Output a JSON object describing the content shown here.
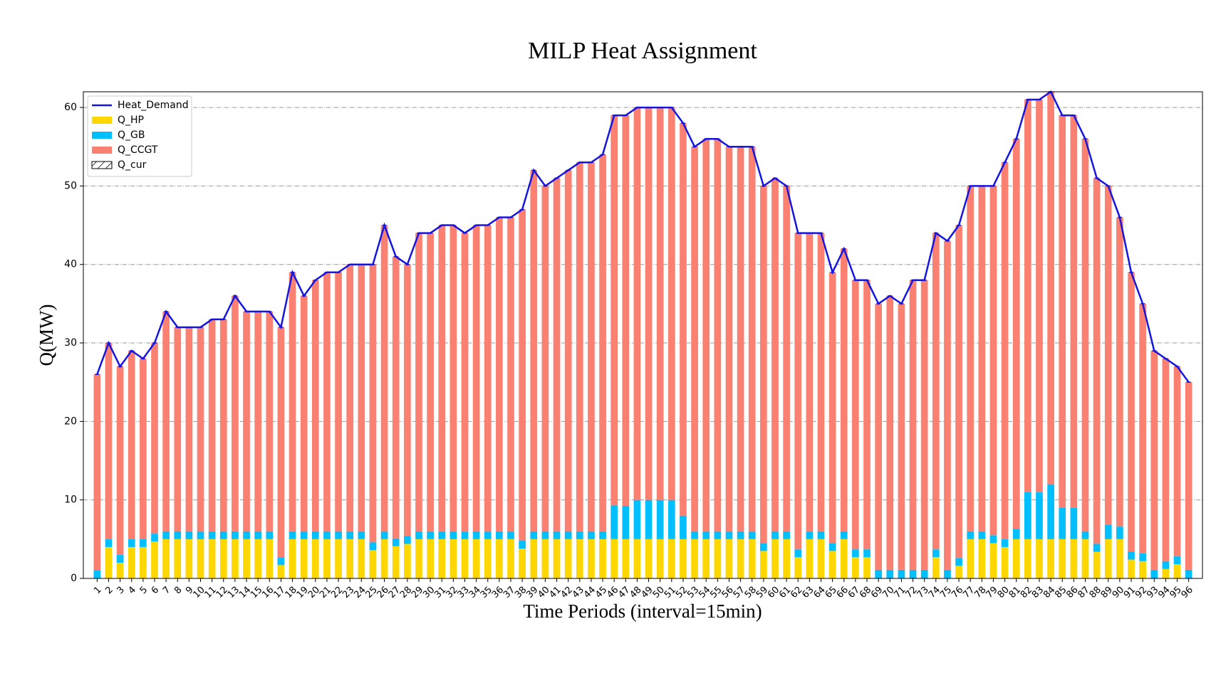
{
  "chart_data": {
    "type": "bar",
    "title": "MILP Heat Assignment",
    "xlabel": "Time Periods (interval=15min)",
    "ylabel": "Q(MW)",
    "categories": [
      "1",
      "2",
      "3",
      "4",
      "5",
      "6",
      "7",
      "8",
      "9",
      "10",
      "11",
      "12",
      "13",
      "14",
      "15",
      "16",
      "17",
      "18",
      "19",
      "20",
      "21",
      "22",
      "23",
      "24",
      "25",
      "26",
      "27",
      "28",
      "29",
      "30",
      "31",
      "32",
      "33",
      "34",
      "35",
      "36",
      "37",
      "38",
      "39",
      "40",
      "41",
      "42",
      "43",
      "44",
      "45",
      "46",
      "47",
      "48",
      "49",
      "50",
      "51",
      "52",
      "53",
      "54",
      "55",
      "56",
      "57",
      "58",
      "59",
      "60",
      "61",
      "62",
      "63",
      "64",
      "65",
      "66",
      "67",
      "68",
      "69",
      "70",
      "71",
      "72",
      "73",
      "74",
      "75",
      "76",
      "77",
      "78",
      "79",
      "80",
      "81",
      "82",
      "83",
      "84",
      "85",
      "86",
      "87",
      "88",
      "89",
      "90",
      "91",
      "92",
      "93",
      "94",
      "95",
      "96"
    ],
    "series": [
      {
        "name": "Heat_Demand",
        "type": "line",
        "color": "#1515e0",
        "values": [
          26,
          30,
          27,
          29,
          28,
          30,
          34,
          32,
          32,
          32,
          33,
          33,
          36,
          34,
          34,
          34,
          32,
          39,
          36,
          38,
          39,
          39,
          40,
          40,
          40,
          45,
          41,
          40,
          44,
          44,
          45,
          45,
          44,
          45,
          45,
          46,
          46,
          47,
          52,
          50,
          51,
          52,
          53,
          53,
          54,
          59,
          59,
          60,
          60,
          60,
          60,
          58,
          55,
          56,
          56,
          55,
          55,
          55,
          50,
          51,
          50,
          44,
          44,
          44,
          39,
          42,
          38,
          38,
          35,
          36,
          35,
          38,
          38,
          44,
          43,
          45,
          50,
          50,
          50,
          53,
          56,
          61,
          61,
          62,
          59,
          59,
          56,
          51,
          50,
          46,
          39,
          35,
          29,
          28,
          27,
          25
        ]
      },
      {
        "name": "Q_HP",
        "type": "bar",
        "color": "#ffd700",
        "values": [
          0,
          4,
          2,
          4,
          4,
          4.7,
          5,
          5,
          5,
          5,
          5,
          5,
          5,
          5,
          5,
          5,
          1.7,
          5,
          5,
          5,
          5,
          5,
          5,
          5,
          3.6,
          5,
          4.1,
          4.4,
          5,
          5,
          5,
          5,
          5,
          5,
          5,
          5,
          5,
          3.8,
          5,
          5,
          5,
          5,
          5,
          5,
          5,
          5,
          5,
          5,
          5,
          5,
          5,
          5,
          5,
          5,
          5,
          5,
          5,
          5,
          3.5,
          5,
          5,
          2.7,
          5,
          5,
          3.5,
          5,
          2.7,
          2.7,
          0,
          0,
          0,
          0,
          0,
          2.7,
          0,
          1.6,
          5,
          5,
          4.5,
          4,
          5,
          5,
          5,
          5,
          5,
          5,
          5,
          3.4,
          5,
          5,
          2.4,
          2.2,
          0,
          1.2,
          1.8,
          0
        ]
      },
      {
        "name": "Q_GB",
        "type": "bar",
        "color": "#00bfff",
        "values": [
          1,
          1,
          1,
          1,
          1,
          1,
          1,
          1,
          1,
          1,
          1,
          1,
          1,
          1,
          1,
          1,
          1,
          1,
          1,
          1,
          1,
          1,
          1,
          1,
          1,
          1,
          1,
          1,
          1,
          1,
          1,
          1,
          1,
          1,
          1,
          1,
          1,
          1,
          1,
          1,
          1,
          1,
          1,
          1,
          1,
          4.3,
          4.2,
          5,
          5,
          5,
          5,
          3,
          1,
          1,
          1,
          1,
          1,
          1,
          1,
          1,
          1,
          1,
          1,
          1,
          1,
          1,
          1,
          1,
          1.1,
          1.1,
          1.1,
          1.1,
          1.1,
          1,
          1.1,
          1,
          1,
          1,
          1,
          1,
          1.3,
          6,
          6,
          7,
          4,
          4,
          1,
          1,
          1.8,
          1.6,
          1,
          1,
          1.1,
          1,
          1,
          1.1
        ]
      },
      {
        "name": "Q_CCGT",
        "type": "bar",
        "color": "#fa8072",
        "values": [
          25,
          25,
          24,
          24,
          23,
          24.3,
          28,
          26,
          26,
          26,
          27,
          27,
          30,
          28,
          28,
          28,
          29.3,
          33,
          30,
          32,
          33,
          33,
          34,
          34,
          35.4,
          39,
          35.9,
          34.6,
          38,
          38,
          39,
          39,
          38,
          39,
          39,
          40,
          40,
          42.2,
          46,
          44,
          45,
          46,
          47,
          47,
          48,
          49.7,
          49.8,
          50,
          50,
          50,
          50,
          50,
          49,
          50,
          50,
          49,
          49,
          49,
          45.5,
          45,
          44,
          40.3,
          38,
          38,
          34.5,
          36,
          34.3,
          34.3,
          33.9,
          34.9,
          33.9,
          36.9,
          36.9,
          40.3,
          41.9,
          42.4,
          44,
          44,
          44.5,
          48,
          49.7,
          50,
          50,
          50,
          50,
          50,
          50,
          46.6,
          43.2,
          39.4,
          35.6,
          31.8,
          27.9,
          25.8,
          24.2,
          23.9
        ]
      },
      {
        "name": "Q_cur",
        "type": "bar",
        "color": "hatch",
        "values": [
          0,
          0,
          0,
          0,
          0,
          0,
          0,
          0,
          0,
          0,
          0,
          0,
          0,
          0,
          0,
          0,
          0,
          0,
          0,
          0,
          0,
          0,
          0,
          0,
          0,
          0,
          0,
          0,
          0,
          0,
          0,
          0,
          0,
          0,
          0,
          0,
          0,
          0,
          0,
          0,
          0,
          0,
          0,
          0,
          0,
          0,
          0,
          0,
          0,
          0,
          0,
          0,
          0,
          0,
          0,
          0,
          0,
          0,
          0,
          0,
          0,
          0,
          0,
          0,
          0,
          0,
          0,
          0,
          0,
          0,
          0,
          0,
          0,
          0,
          0,
          0,
          0,
          0,
          0,
          0,
          0,
          0,
          0,
          0,
          0,
          0,
          0,
          0,
          0,
          0,
          0,
          0,
          0,
          0,
          0,
          0
        ]
      }
    ],
    "ylim": [
      0,
      62
    ],
    "yticks": [
      0,
      10,
      20,
      30,
      40,
      50,
      60
    ],
    "grid": true,
    "legend": "upper left"
  }
}
